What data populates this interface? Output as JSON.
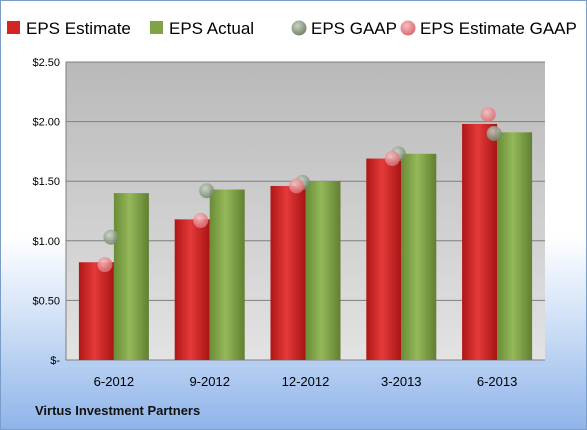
{
  "chart_data": {
    "type": "bar",
    "title": "",
    "xlabel": "",
    "ylabel": "",
    "categories": [
      "6-2012",
      "9-2012",
      "12-2012",
      "3-2013",
      "6-2013"
    ],
    "ylim": [
      0,
      2.5
    ],
    "y_ticks": [
      0,
      0.5,
      1.0,
      1.5,
      2.0,
      2.5
    ],
    "y_tick_labels": [
      "$-",
      "$0.50",
      "$1.00",
      "$1.50",
      "$2.00",
      "$2.50"
    ],
    "grid": true,
    "legend_position": "top",
    "series": [
      {
        "name": "EPS Estimate",
        "kind": "bar",
        "color": "#d42424",
        "values": [
          0.82,
          1.18,
          1.46,
          1.69,
          1.98
        ]
      },
      {
        "name": "EPS Actual",
        "kind": "bar",
        "color": "#7fa346",
        "values": [
          1.4,
          1.43,
          1.5,
          1.73,
          1.91
        ]
      },
      {
        "name": "EPS GAAP",
        "kind": "scatter",
        "color": "#8e9e86",
        "values": [
          1.03,
          1.42,
          1.49,
          1.73,
          1.9
        ]
      },
      {
        "name": "EPS Estimate GAAP",
        "kind": "scatter",
        "color": "#e8868a",
        "values": [
          0.8,
          1.17,
          1.46,
          1.69,
          2.06
        ]
      }
    ]
  },
  "footer": {
    "company": "Virtus Investment Partners"
  }
}
